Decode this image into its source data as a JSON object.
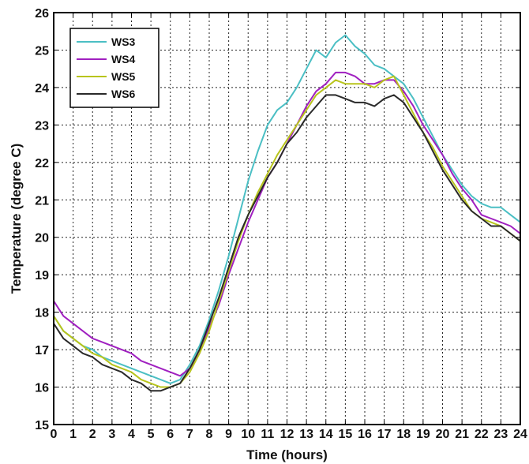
{
  "chart_data": {
    "type": "line",
    "title": "",
    "xlabel": "Time (hours)",
    "ylabel": "Temperature (degree C)",
    "xlim": [
      0,
      24
    ],
    "ylim": [
      15,
      26
    ],
    "xticks": [
      "0",
      "1",
      "2",
      "3",
      "4",
      "5",
      "6",
      "7",
      "8",
      "9",
      "10",
      "11",
      "12",
      "13",
      "14",
      "15",
      "16",
      "17",
      "18",
      "19",
      "20",
      "21",
      "22",
      "23",
      "24"
    ],
    "yticks": [
      "15",
      "16",
      "17",
      "18",
      "19",
      "20",
      "21",
      "22",
      "23",
      "24",
      "25",
      "26"
    ],
    "grid": true,
    "legend_position": "top-left",
    "x": [
      0,
      0.5,
      1,
      1.5,
      2,
      2.5,
      3,
      3.5,
      4,
      4.5,
      5,
      5.5,
      6,
      6.5,
      7,
      7.5,
      8,
      8.5,
      9,
      9.5,
      10,
      10.5,
      11,
      11.5,
      12,
      12.5,
      13,
      13.5,
      14,
      14.5,
      15,
      15.5,
      16,
      16.5,
      17,
      17.5,
      18,
      18.5,
      19,
      19.5,
      20,
      20.5,
      21,
      21.5,
      22,
      22.5,
      23,
      23.5,
      24
    ],
    "series": [
      {
        "name": "WS3",
        "color": "#4bbfc4",
        "values": [
          17.9,
          17.5,
          17.3,
          17.1,
          17.0,
          16.8,
          16.7,
          16.6,
          16.5,
          16.4,
          16.3,
          16.2,
          16.1,
          16.2,
          16.6,
          17.1,
          17.8,
          18.6,
          19.5,
          20.5,
          21.5,
          22.3,
          23.0,
          23.4,
          23.6,
          24.0,
          24.5,
          25.0,
          24.8,
          25.2,
          25.4,
          25.1,
          24.9,
          24.6,
          24.5,
          24.3,
          24.1,
          23.7,
          23.2,
          22.7,
          22.2,
          21.8,
          21.4,
          21.1,
          20.9,
          20.8,
          20.8,
          20.6,
          20.4
        ]
      },
      {
        "name": "WS4",
        "color": "#a020c0",
        "values": [
          18.3,
          17.9,
          17.7,
          17.5,
          17.3,
          17.2,
          17.1,
          17.0,
          16.9,
          16.7,
          16.6,
          16.5,
          16.4,
          16.3,
          16.5,
          16.9,
          17.6,
          18.2,
          19.0,
          19.7,
          20.4,
          21.0,
          21.6,
          22.0,
          22.5,
          23.0,
          23.5,
          23.9,
          24.1,
          24.4,
          24.4,
          24.3,
          24.1,
          24.1,
          24.2,
          24.2,
          23.9,
          23.5,
          23.0,
          22.6,
          22.2,
          21.7,
          21.3,
          21.0,
          20.6,
          20.5,
          20.4,
          20.3,
          20.1
        ]
      },
      {
        "name": "WS5",
        "color": "#b8c41c",
        "values": [
          17.9,
          17.5,
          17.3,
          17.1,
          16.9,
          16.8,
          16.6,
          16.5,
          16.4,
          16.2,
          16.1,
          16.0,
          16.0,
          16.1,
          16.4,
          16.9,
          17.5,
          18.3,
          19.1,
          19.9,
          20.6,
          21.2,
          21.7,
          22.2,
          22.6,
          23.0,
          23.4,
          23.8,
          24.0,
          24.2,
          24.1,
          24.1,
          24.1,
          24.0,
          24.2,
          24.3,
          23.8,
          23.3,
          22.8,
          22.4,
          21.9,
          21.5,
          21.1,
          20.7,
          20.5,
          20.4,
          20.3,
          20.1,
          19.9
        ]
      },
      {
        "name": "WS6",
        "color": "#2a2a2a",
        "values": [
          17.7,
          17.3,
          17.1,
          16.9,
          16.8,
          16.6,
          16.5,
          16.4,
          16.2,
          16.1,
          15.9,
          15.9,
          16.0,
          16.1,
          16.5,
          17.0,
          17.7,
          18.4,
          19.2,
          20.0,
          20.6,
          21.1,
          21.6,
          22.0,
          22.5,
          22.8,
          23.2,
          23.5,
          23.8,
          23.8,
          23.7,
          23.6,
          23.6,
          23.5,
          23.7,
          23.8,
          23.6,
          23.2,
          22.8,
          22.3,
          21.8,
          21.4,
          21.0,
          20.7,
          20.5,
          20.3,
          20.3,
          20.1,
          19.9
        ]
      }
    ]
  }
}
